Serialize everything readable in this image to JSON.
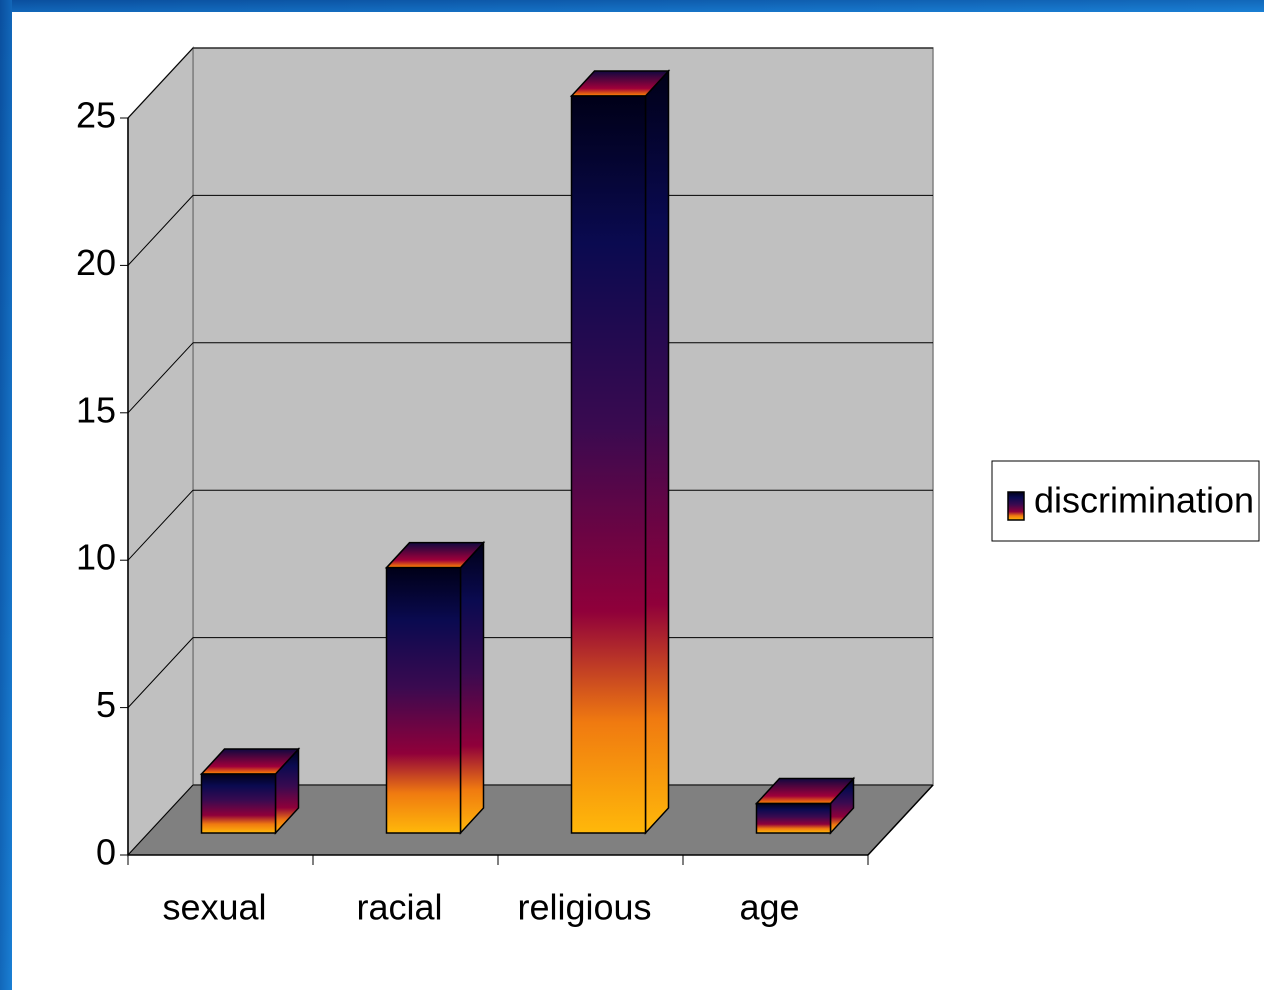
{
  "chart_data": {
    "type": "bar",
    "categories": [
      "sexual",
      "racial",
      "religious",
      "age"
    ],
    "series": [
      {
        "name": "discrimination",
        "values": [
          2,
          9,
          25,
          1
        ]
      }
    ],
    "ylim": [
      0,
      25
    ],
    "yticks": [
      0,
      5,
      10,
      15,
      20,
      25
    ],
    "grid": true,
    "legend": "right"
  }
}
